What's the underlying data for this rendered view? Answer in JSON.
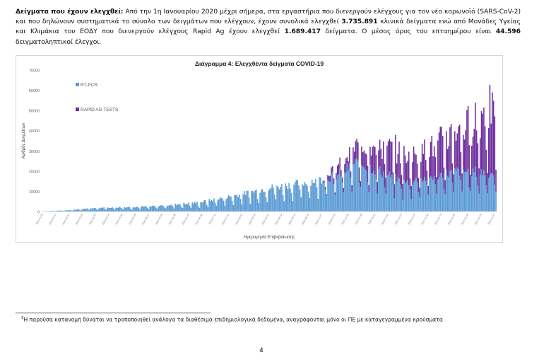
{
  "paragraph": {
    "lead": "Δείγματα που έχουν ελεγχθεί:",
    "text1": " Από την 1η Ιανουαρίου 2020 μέχρι σήμερα, στα εργαστήρια που διενεργούν ελέγχους για τον νέο κορωνοϊό (SARS-CoV-2) και που δηλώνουν συστηματικά το σύνολο των δειγμάτων που ελέγχουν, έχουν συνολικά ελεγχθεί ",
    "clinical_samples": "3.735.891",
    "text2": " κλινικά δείγματα ενώ από Μονάδες Υγείας και Κλιμάκια του ΕΟΔΥ που διενεργούν ελέγχους Rapid Ag έχουν ελεγχθεί ",
    "rapid_samples": "1.689.417",
    "text3": " δείγματα. Ο μέσος όρος του επταημέρου είναι ",
    "weekly_average": "44.596",
    "text4": " δειγματοληπτικοί έλεγχοι."
  },
  "chart_data": {
    "type": "bar",
    "stacked": true,
    "title": "Διάγραμμα 4: Ελεγχθέντα δείγματα COVID-19",
    "xlabel": "Ημερομηνία Επιβεβαίωσης",
    "ylabel": "Αριθμός Δειγμάτων",
    "ylim": [
      0,
      70000
    ],
    "yticks": [
      0,
      10000,
      20000,
      30000,
      40000,
      50000,
      60000,
      70000
    ],
    "legend_position": "top-left",
    "colors": {
      "rt_pcr": "#5b9bd5",
      "rapid": "#7030a0"
    },
    "x_range": [
      "2020-02-19",
      "2021-02-28"
    ],
    "xtick_labels": [
      "2020-02-19",
      "2020-03-01",
      "2020-03-12",
      "2020-03-23",
      "2020-04-03",
      "2020-04-14",
      "2020-04-25",
      "2020-05-06",
      "2020-05-17",
      "2020-05-28",
      "2020-06-08",
      "2020-06-19",
      "2020-06-30",
      "2020-07-11",
      "2020-07-22",
      "2020-08-02",
      "2020-08-13",
      "2020-08-24",
      "2020-09-04",
      "2020-09-15",
      "2020-09-26",
      "2020-10-07",
      "2020-10-18",
      "2020-10-29",
      "2020-11-09",
      "2020-11-20",
      "2020-12-01",
      "2020-12-12",
      "2020-12-23",
      "2021-01-03",
      "2021-01-14",
      "2021-01-25",
      "2021-02-05",
      "2021-02-16",
      "2021-02-27"
    ],
    "series": [
      {
        "name": "RT-PCR",
        "description": "daily RT-PCR tests: ~0 (Feb-Mar 2020) rising to ~2000 (Apr-May), ~4000 (Jun), ~7000 (Jul), ~12000 (Aug), ~15000 (Sep-Oct), ~25000 (Nov peak), ~15000 (Dec), ~20000 (Jan-Feb 2021)"
      },
      {
        "name": "RAPID AG TESTS",
        "description": "daily rapid antigen tests: starting ~Oct 2020 at ~3000, rising to ~15000 (Nov-Dec), ~20000 (Jan), up to ~37000 (late Feb 2021, total peak ~61000)"
      }
    ],
    "legend": [
      "RT-PCR",
      "RAPID AG TESTS"
    ]
  },
  "footnote": {
    "marker": "3",
    "text": "Η παρούσα κατανομή δύναται να τροποποιηθεί ανάλογα τα διαθέσιμα επιδημιολογικά δεδομένα, αναγράφονται μόνο οι ΠΕ με καταγεγραμμένα κρούσματα"
  },
  "page_number": "4"
}
